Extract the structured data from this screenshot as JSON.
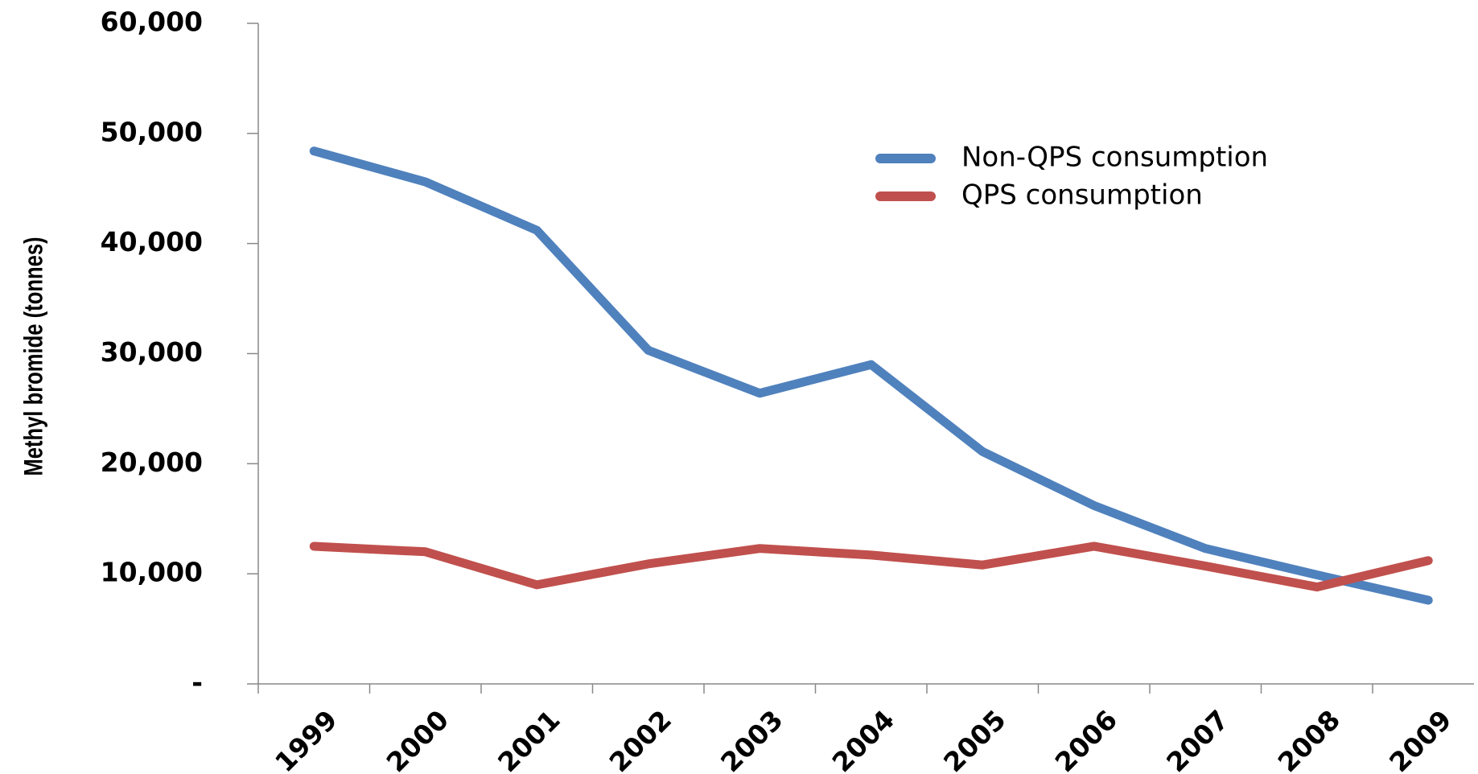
{
  "chart_data": {
    "type": "line",
    "y_label": "Methyl bromide (tonnes)",
    "categories": [
      "1999",
      "2000",
      "2001",
      "2002",
      "2003",
      "2004",
      "2005",
      "2006",
      "2007",
      "2008",
      "2009"
    ],
    "series": [
      {
        "name": "Non-QPS consumption",
        "color": "#4f81bd",
        "values": [
          48400,
          45600,
          41200,
          30300,
          26400,
          29000,
          21100,
          16200,
          12300,
          9900,
          7600
        ]
      },
      {
        "name": "QPS consumption",
        "color": "#c0504d",
        "values": [
          12500,
          12000,
          9000,
          10900,
          12300,
          11700,
          10800,
          12500,
          10700,
          8800,
          11200
        ]
      }
    ],
    "ylim": [
      0,
      60000
    ],
    "yticks": [
      {
        "value": 0,
        "label": "-"
      },
      {
        "value": 10000,
        "label": "10,000"
      },
      {
        "value": 20000,
        "label": "20,000"
      },
      {
        "value": 30000,
        "label": "30,000"
      },
      {
        "value": 40000,
        "label": "40,000"
      },
      {
        "value": 50000,
        "label": "50,000"
      },
      {
        "value": 60000,
        "label": "60,000"
      }
    ],
    "grid": false,
    "legend": "upper right"
  }
}
